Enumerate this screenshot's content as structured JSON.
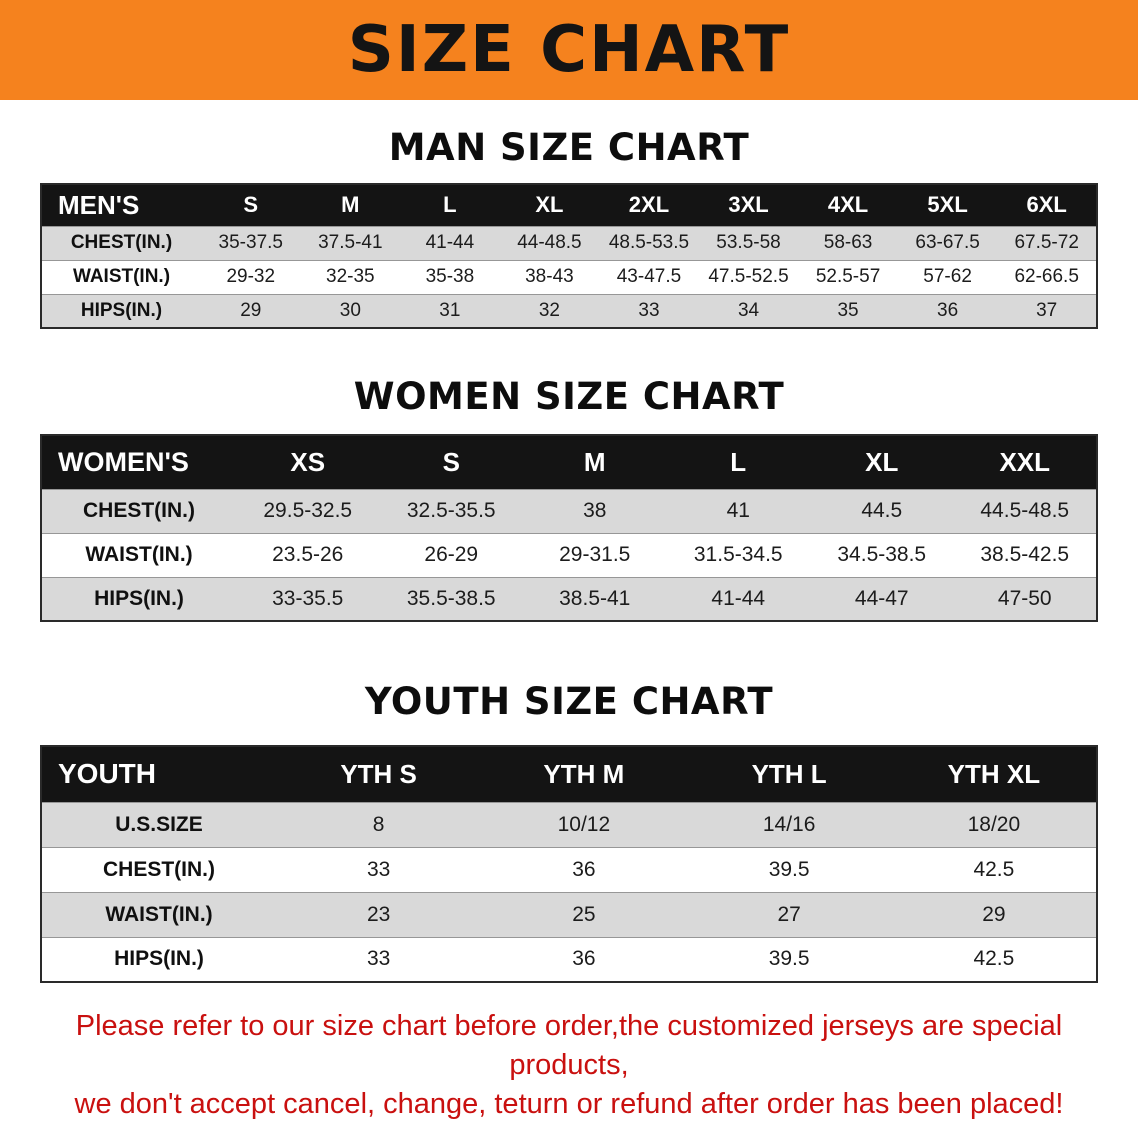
{
  "banner": {
    "title": "SIZE CHART",
    "bg_color": "#f5821e"
  },
  "sections": [
    {
      "id": "men",
      "heading": "MAN SIZE CHART",
      "table": {
        "header": [
          "MEN'S",
          "S",
          "M",
          "L",
          "XL",
          "2XL",
          "3XL",
          "4XL",
          "5XL",
          "6XL"
        ],
        "rows": [
          {
            "label": "CHEST(IN.)",
            "values": [
              "35-37.5",
              "37.5-41",
              "41-44",
              "44-48.5",
              "48.5-53.5",
              "53.5-58",
              "58-63",
              "63-67.5",
              "67.5-72"
            ]
          },
          {
            "label": "WAIST(IN.)",
            "values": [
              "29-32",
              "32-35",
              "35-38",
              "38-43",
              "43-47.5",
              "47.5-52.5",
              "52.5-57",
              "57-62",
              "62-66.5"
            ]
          },
          {
            "label": "HIPS(IN.)",
            "values": [
              "29",
              "30",
              "31",
              "32",
              "33",
              "34",
              "35",
              "36",
              "37"
            ]
          }
        ]
      }
    },
    {
      "id": "women",
      "heading": "WOMEN SIZE CHART",
      "table": {
        "header": [
          "WOMEN'S",
          "XS",
          "S",
          "M",
          "L",
          "XL",
          "XXL"
        ],
        "rows": [
          {
            "label": "CHEST(IN.)",
            "values": [
              "29.5-32.5",
              "32.5-35.5",
              "38",
              "41",
              "44.5",
              "44.5-48.5"
            ]
          },
          {
            "label": "WAIST(IN.)",
            "values": [
              "23.5-26",
              "26-29",
              "29-31.5",
              "31.5-34.5",
              "34.5-38.5",
              "38.5-42.5"
            ]
          },
          {
            "label": "HIPS(IN.)",
            "values": [
              "33-35.5",
              "35.5-38.5",
              "38.5-41",
              "41-44",
              "44-47",
              "47-50"
            ]
          }
        ]
      }
    },
    {
      "id": "youth",
      "heading": "YOUTH SIZE CHART",
      "table": {
        "header": [
          "YOUTH",
          "YTH S",
          "YTH M",
          "YTH L",
          "YTH XL"
        ],
        "rows": [
          {
            "label": "U.S.SIZE",
            "values": [
              "8",
              "10/12",
              "14/16",
              "18/20"
            ]
          },
          {
            "label": "CHEST(IN.)",
            "values": [
              "33",
              "36",
              "39.5",
              "42.5"
            ]
          },
          {
            "label": "WAIST(IN.)",
            "values": [
              "23",
              "25",
              "27",
              "29"
            ]
          },
          {
            "label": "HIPS(IN.)",
            "values": [
              "33",
              "36",
              "39.5",
              "42.5"
            ]
          }
        ]
      }
    }
  ],
  "disclaimer": {
    "line1": "Please refer to our size chart before order,the customized jerseys are special products,",
    "line2": "we don't accept cancel, change, teturn or refund after order has been placed!",
    "color": "#c9100f"
  }
}
